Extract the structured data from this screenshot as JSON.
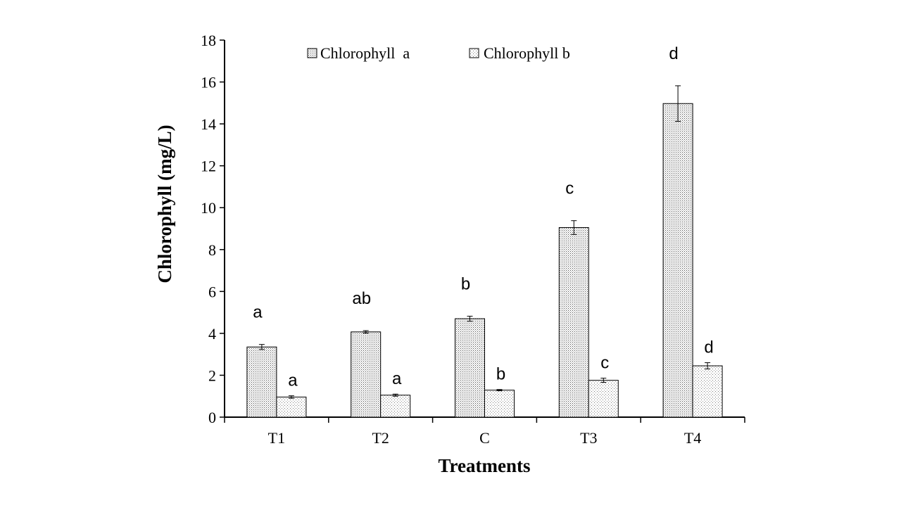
{
  "chart_data": {
    "type": "bar",
    "xlabel": "Treatments",
    "ylabel": "Chlorophyll (mg/L)",
    "ylim": [
      0,
      18
    ],
    "ytick_step": 2,
    "grid": false,
    "legend_position": "top",
    "categories": [
      "T1",
      "T2",
      "C",
      "T3",
      "T4"
    ],
    "series": [
      {
        "name": "Chlorophyll  a",
        "values": [
          3.35,
          4.07,
          4.7,
          9.05,
          14.97
        ],
        "errors": [
          0.12,
          0.06,
          0.12,
          0.33,
          0.85
        ],
        "letters": [
          "a",
          "ab",
          "b",
          "c",
          "d"
        ],
        "pattern": "dense-dots"
      },
      {
        "name": "Chlorophyll b",
        "values": [
          0.96,
          1.05,
          1.29,
          1.76,
          2.45
        ],
        "errors": [
          0.06,
          0.05,
          0.03,
          0.1,
          0.15
        ],
        "letters": [
          "a",
          "a",
          "b",
          "c",
          "d"
        ],
        "pattern": "sparse-dots"
      }
    ]
  }
}
